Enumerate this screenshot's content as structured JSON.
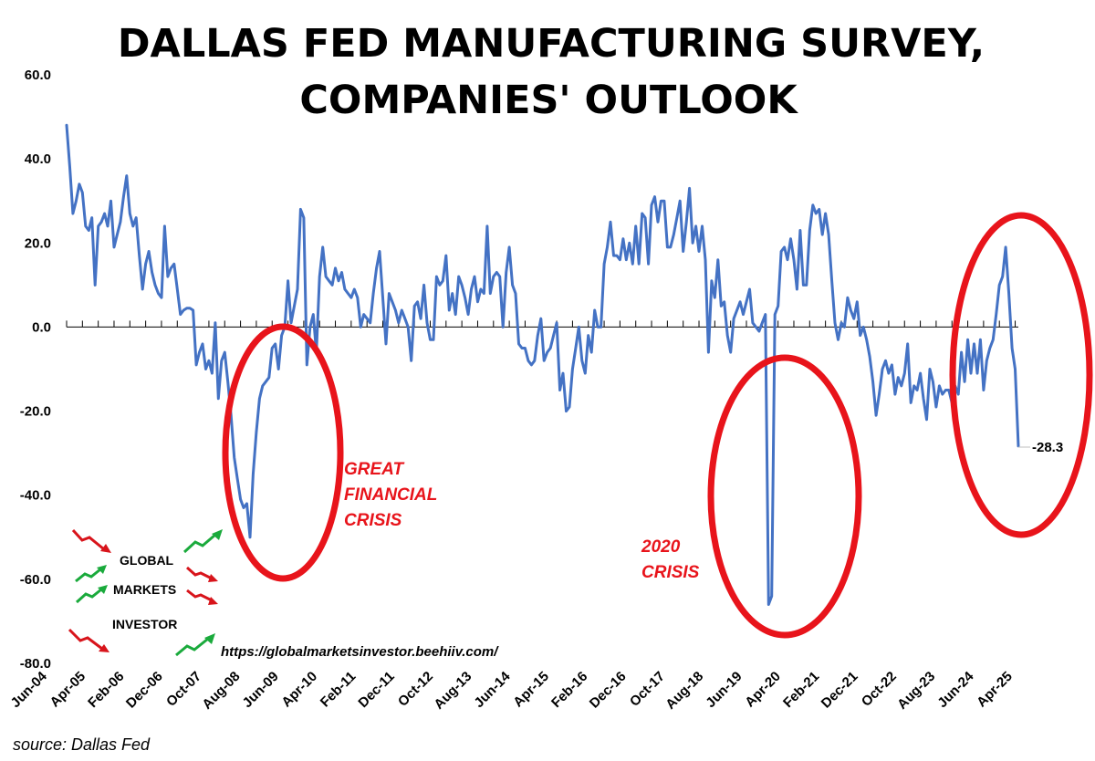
{
  "chart_data": {
    "type": "line",
    "title_lines": [
      "DALLAS FED MANUFACTURING SURVEY,",
      "COMPANIES' OUTLOOK"
    ],
    "xlabel": "",
    "ylabel": "",
    "ylim": [
      -80,
      60
    ],
    "yticks": [
      60,
      40,
      20,
      0,
      -20,
      -40,
      -60,
      -80
    ],
    "ytick_labels": [
      "60.0",
      "40.0",
      "20.0",
      "0.0",
      "-20.0",
      "-40.0",
      "-60.0",
      "-80.0"
    ],
    "x_start": "Jun-04",
    "x_end": "Apr-25",
    "xtick_labels": [
      "Jun-04",
      "Apr-05",
      "Feb-06",
      "Dec-06",
      "Oct-07",
      "Aug-08",
      "Jun-09",
      "Apr-10",
      "Feb-11",
      "Dec-11",
      "Oct-12",
      "Aug-13",
      "Jun-14",
      "Apr-15",
      "Feb-16",
      "Dec-16",
      "Oct-17",
      "Aug-18",
      "Jun-19",
      "Apr-20",
      "Feb-21",
      "Dec-21",
      "Oct-22",
      "Aug-23",
      "Jun-24",
      "Apr-25"
    ],
    "series": [
      {
        "color": "#4472c4",
        "values": [
          48,
          38,
          27,
          30,
          34,
          32,
          24,
          23,
          26,
          10,
          24,
          25,
          27,
          24,
          30,
          19,
          22,
          25,
          31,
          36,
          27,
          24,
          26,
          17,
          9,
          15,
          18,
          13,
          10,
          8,
          7,
          24,
          12,
          14,
          15,
          9,
          3,
          4,
          4.5,
          4.5,
          4,
          -9,
          -6,
          -4,
          -10,
          -8,
          -11,
          1,
          -17,
          -8,
          -6,
          -13,
          -21,
          -31,
          -36,
          -41,
          -43,
          -42,
          -50,
          -35,
          -25,
          -17,
          -14,
          -13,
          -12,
          -5,
          -4,
          -10,
          -2,
          0,
          11,
          1,
          5,
          9,
          28,
          26,
          -9,
          0,
          3,
          -6,
          12,
          19,
          12,
          11,
          10,
          14,
          11,
          13,
          9,
          8,
          7,
          9,
          7,
          0,
          3,
          2,
          1,
          8,
          14,
          18,
          7,
          -4,
          8,
          6,
          4,
          1,
          4,
          2,
          0,
          -8,
          5,
          6,
          2,
          10,
          1,
          -3,
          -3,
          12,
          10,
          11,
          17,
          4,
          8,
          3,
          12,
          10,
          7,
          3,
          9,
          12,
          6,
          9,
          8,
          24,
          8,
          12,
          13,
          12,
          0,
          13,
          19,
          10,
          8,
          -4,
          -5,
          -5,
          -8,
          -9,
          -8,
          -2,
          2,
          -8,
          -6,
          -5,
          -2,
          1,
          -15,
          -11,
          -20,
          -19,
          -10,
          -5,
          0,
          -8,
          -11,
          -2,
          -6,
          4,
          0,
          0,
          15,
          19,
          25,
          17,
          17,
          16,
          21,
          16,
          20,
          15,
          24,
          15,
          27,
          26,
          15,
          29,
          31,
          25,
          30,
          30,
          19,
          19,
          22,
          26,
          30,
          18,
          25,
          33,
          20,
          24,
          18,
          24,
          16,
          -6,
          11,
          7,
          16,
          5,
          6,
          -2,
          -6,
          2,
          4,
          6,
          3,
          6,
          9,
          1,
          0,
          -1,
          1,
          3,
          -66,
          -64,
          3,
          5,
          18,
          19,
          16,
          21,
          16,
          9,
          23,
          10,
          10,
          23,
          29,
          27,
          28,
          22,
          27,
          22,
          11,
          1,
          -3,
          1,
          0,
          7,
          4,
          2,
          6,
          -2,
          0,
          -3,
          -7,
          -13,
          -21,
          -16,
          -10,
          -8,
          -11,
          -9,
          -16,
          -12,
          -14,
          -11,
          -4,
          -18,
          -14,
          -15,
          -11,
          -17,
          -22,
          -10,
          -13,
          -19,
          -14,
          -16,
          -15,
          -15,
          -18,
          -14,
          -16,
          -6,
          -13,
          -3,
          -11,
          -4,
          -11,
          -3,
          -15,
          -8,
          -5,
          -3,
          3,
          10,
          12,
          19,
          8,
          -5,
          -10,
          -28.3
        ]
      }
    ],
    "last_value_label": "-28.3",
    "annotations": [
      {
        "lines": [
          "GREAT",
          "FINANCIAL",
          "CRISIS"
        ],
        "color": "#e8141b"
      },
      {
        "lines": [
          "2020",
          "CRISIS"
        ],
        "color": "#e8141b"
      }
    ],
    "highlight_color": "#e8141b"
  },
  "branding": {
    "lines": [
      "GLOBAL",
      "MARKETS",
      "INVESTOR"
    ],
    "url": "https://globalmarketsinvestor.beehiiv.com/",
    "up_color": "#1aaa3c",
    "down_color": "#d8141b"
  },
  "source": "source: Dallas Fed"
}
